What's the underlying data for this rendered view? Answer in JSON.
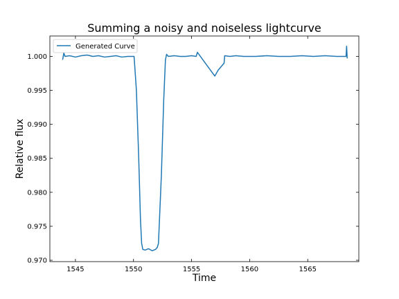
{
  "chart_data": {
    "type": "line",
    "title": "Summing a noisy and noiseless lightcurve",
    "xlabel": "Time",
    "ylabel": "Relative flux",
    "xlim": [
      1542.8,
      1569.4
    ],
    "ylim": [
      0.9698,
      1.003
    ],
    "xticks": [
      1545,
      1550,
      1555,
      1560,
      1565
    ],
    "yticks": [
      0.97,
      0.975,
      0.98,
      0.985,
      0.99,
      0.995,
      1.0
    ],
    "ytick_labels": [
      "0.970",
      "0.975",
      "0.980",
      "0.985",
      "0.990",
      "0.995",
      "1.000"
    ],
    "grid": false,
    "legend_position": "upper left",
    "series": [
      {
        "name": "Generated Curve",
        "color": "#1f77b4",
        "x": [
          1543.9,
          1544.0,
          1544.1,
          1544.5,
          1545.0,
          1545.5,
          1546.0,
          1546.5,
          1547.0,
          1547.5,
          1548.0,
          1548.5,
          1549.0,
          1549.5,
          1550.0,
          1550.05,
          1550.25,
          1550.45,
          1550.6,
          1550.7,
          1550.8,
          1551.0,
          1551.3,
          1551.6,
          1551.9,
          1552.05,
          1552.15,
          1552.4,
          1552.6,
          1552.75,
          1552.85,
          1553.0,
          1553.5,
          1554.0,
          1554.5,
          1555.0,
          1555.4,
          1555.5,
          1557.0,
          1557.3,
          1557.8,
          1557.85,
          1558.3,
          1558.8,
          1559.5,
          1560.5,
          1561.5,
          1562.5,
          1563.5,
          1564.5,
          1565.5,
          1566.5,
          1567.5,
          1568.3,
          1568.35,
          1568.4
        ],
        "y": [
          0.9995,
          1.0005,
          1.0,
          1.0001,
          0.9999,
          1.0001,
          1.0002,
          1.0,
          1.0001,
          0.9999,
          1.0,
          1.0001,
          0.9999,
          1.0,
          1.0,
          1.0,
          0.995,
          0.985,
          0.976,
          0.9725,
          0.9716,
          0.9715,
          0.9717,
          0.9714,
          0.9716,
          0.9719,
          0.9725,
          0.9825,
          0.9935,
          0.9995,
          1.0003,
          1.0,
          1.0001,
          1.0,
          1.0,
          1.0001,
          1.0,
          1.0006,
          0.9971,
          0.998,
          0.999,
          1.0001,
          1.0,
          1.0001,
          1.0,
          1.0,
          1.0001,
          1.0,
          1.0,
          1.0001,
          1.0,
          1.0001,
          1.0,
          1.0,
          1.0015,
          0.9997
        ]
      }
    ]
  }
}
